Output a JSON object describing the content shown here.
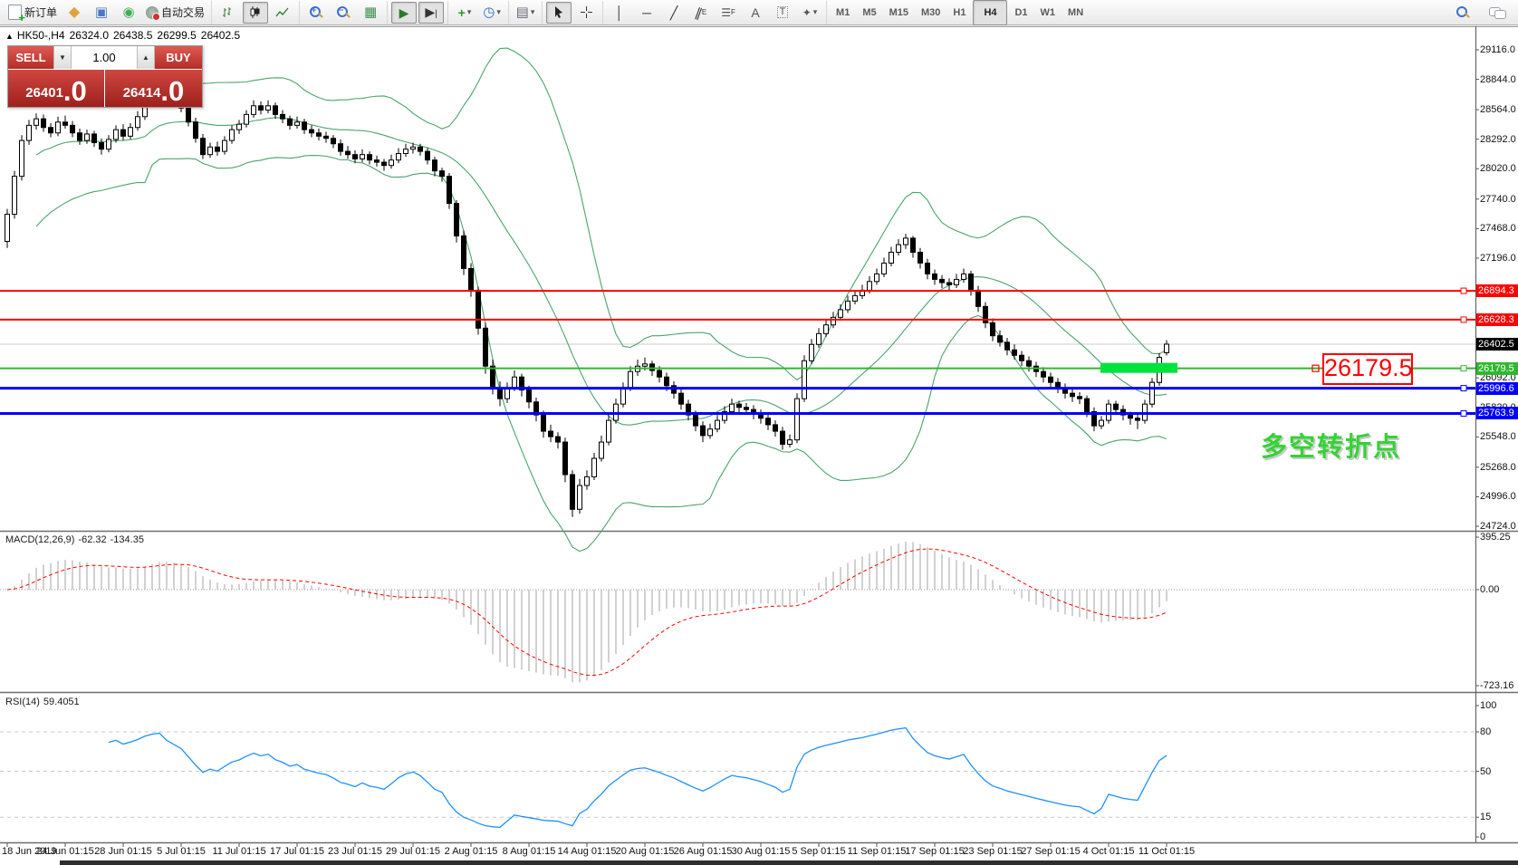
{
  "toolbar": {
    "new_order_label": "新订单",
    "autotrading_label": "自动交易",
    "timeframes": [
      "M1",
      "M5",
      "M15",
      "M30",
      "H1",
      "H4",
      "D1",
      "W1",
      "MN"
    ],
    "active_timeframe": "H4"
  },
  "header": {
    "marker": "▲",
    "symbol_period": "HK50-,H4",
    "open": "26324.0",
    "high": "26438.5",
    "low": "26299.5",
    "close": "26402.5"
  },
  "trade_panel": {
    "sell_label": "SELL",
    "buy_label": "BUY",
    "volume": "1.00",
    "sell_price": "26401",
    "sell_price_dec": ".0",
    "buy_price": "26414",
    "buy_price_dec": ".0"
  },
  "annotations": {
    "price_label": {
      "text": "26179.5",
      "color": "#ff0000"
    },
    "cn_text": {
      "text": "多空转折点",
      "color": "#35d335"
    },
    "highlight_box": {
      "price": 26179.5,
      "color": "#00e33d"
    }
  },
  "indicators": {
    "macd": {
      "name": "MACD(12,26,9)",
      "value_main": "-62.32",
      "value_signal": "-134.35"
    },
    "rsi": {
      "name": "RSI(14)",
      "value": "59.4051"
    }
  },
  "axis": {
    "y_ticks": [
      {
        "text": "29116.0",
        "price": 29116
      },
      {
        "text": "28844.0",
        "price": 28844
      },
      {
        "text": "28564.0",
        "price": 28564
      },
      {
        "text": "28292.0",
        "price": 28292
      },
      {
        "text": "28020.0",
        "price": 28020
      },
      {
        "text": "27740.0",
        "price": 27740
      },
      {
        "text": "27468.0",
        "price": 27468
      },
      {
        "text": "27196.0",
        "price": 27196
      },
      {
        "text": "26092.0",
        "price": 26092
      },
      {
        "text": "25820.0",
        "price": 25820
      },
      {
        "text": "25548.0",
        "price": 25548
      },
      {
        "text": "25268.0",
        "price": 25268
      },
      {
        "text": "24996.0",
        "price": 24996
      },
      {
        "text": "24724.0",
        "price": 24724
      }
    ],
    "x_labels": [
      "18 Jun 2019",
      "24 Jun 01:15",
      "28 Jun 01:15",
      "5 Jul 01:15",
      "11 Jul 01:15",
      "17 Jul 01:15",
      "23 Jul 01:15",
      "29 Jul 01:15",
      "2 Aug 01:15",
      "8 Aug 01:15",
      "14 Aug 01:15",
      "20 Aug 01:15",
      "26 Aug 01:15",
      "30 Aug 01:15",
      "5 Sep 01:15",
      "11 Sep 01:15",
      "17 Sep 01:15",
      "23 Sep 01:15",
      "27 Sep 01:15",
      "4 Oct 01:15",
      "11 Oct 01:15"
    ],
    "macd_scale": [
      {
        "text": "395.25",
        "value": 395.25
      },
      {
        "text": "0.00",
        "value": 0
      },
      {
        "text": "-723.16",
        "value": -723.16
      }
    ],
    "rsi_scale": [
      {
        "text": "100",
        "value": 100
      },
      {
        "text": "80",
        "value": 80
      },
      {
        "text": "50",
        "value": 50
      },
      {
        "text": "15",
        "value": 15
      },
      {
        "text": "0",
        "value": 0
      }
    ]
  },
  "price_badges": [
    {
      "text": "26894.3",
      "price": 26894.3,
      "color": "#ff0000"
    },
    {
      "text": "26628.3",
      "price": 26628.3,
      "color": "#ff0000"
    },
    {
      "text": "26402.5",
      "price": 26402.5,
      "color": "#000000"
    },
    {
      "text": "26179.5",
      "price": 26179.5,
      "color": "#2eb82e"
    },
    {
      "text": "25996.6",
      "price": 25996.6,
      "color": "#0000ff"
    },
    {
      "text": "25763.9",
      "price": 25763.9,
      "color": "#0000ff"
    }
  ],
  "hlines": [
    {
      "price": 26894.3,
      "color": "#ff0000",
      "width": 2
    },
    {
      "price": 26628.3,
      "color": "#ff0000",
      "width": 2
    },
    {
      "price": 26179.5,
      "color": "#2eb82e",
      "width": 2
    },
    {
      "price": 25996.6,
      "color": "#0000ff",
      "width": 3
    },
    {
      "price": 25763.9,
      "color": "#0000ff",
      "width": 3
    }
  ],
  "chart_data": {
    "type": "candlestick",
    "symbol": "HK50-",
    "timeframe": "H4",
    "current_bar": {
      "open": 26324.0,
      "high": 26438.5,
      "low": 26299.5,
      "close": 26402.5
    },
    "price_anchors": {
      "price_top": 29116,
      "price_bottom": 24724
    },
    "overlays": {
      "bollinger": {
        "period": 20,
        "deviation": 2
      }
    },
    "macd_params": {
      "fast": 12,
      "slow": 26,
      "signal": 9
    },
    "rsi_params": {
      "period": 14,
      "levels": [
        80,
        50,
        15
      ]
    },
    "candles": [
      [
        27350,
        27650,
        27290,
        27600
      ],
      [
        27600,
        28000,
        27560,
        27950
      ],
      [
        27950,
        28330,
        27910,
        28280
      ],
      [
        28280,
        28470,
        28240,
        28420
      ],
      [
        28420,
        28530,
        28380,
        28480
      ],
      [
        28480,
        28520,
        28360,
        28400
      ],
      [
        28400,
        28440,
        28310,
        28350
      ],
      [
        28350,
        28500,
        28320,
        28450
      ],
      [
        28450,
        28510,
        28390,
        28420
      ],
      [
        28420,
        28460,
        28310,
        28350
      ],
      [
        28350,
        28390,
        28240,
        28280
      ],
      [
        28280,
        28380,
        28250,
        28340
      ],
      [
        28340,
        28370,
        28220,
        28260
      ],
      [
        28260,
        28300,
        28150,
        28200
      ],
      [
        28200,
        28330,
        28170,
        28290
      ],
      [
        28290,
        28420,
        28260,
        28380
      ],
      [
        28380,
        28430,
        28280,
        28320
      ],
      [
        28320,
        28440,
        28290,
        28400
      ],
      [
        28400,
        28550,
        28370,
        28500
      ],
      [
        28500,
        28690,
        28470,
        28650
      ],
      [
        28650,
        28800,
        28620,
        28750
      ],
      [
        28750,
        28840,
        28710,
        28800
      ],
      [
        28800,
        28830,
        28660,
        28700
      ],
      [
        28700,
        28740,
        28590,
        28640
      ],
      [
        28640,
        28690,
        28540,
        28580
      ],
      [
        28580,
        28620,
        28410,
        28450
      ],
      [
        28450,
        28490,
        28260,
        28300
      ],
      [
        28300,
        28340,
        28110,
        28150
      ],
      [
        28150,
        28260,
        28120,
        28220
      ],
      [
        28220,
        28270,
        28140,
        28180
      ],
      [
        28180,
        28320,
        28150,
        28280
      ],
      [
        28280,
        28420,
        28250,
        28380
      ],
      [
        28380,
        28470,
        28340,
        28430
      ],
      [
        28430,
        28560,
        28400,
        28520
      ],
      [
        28520,
        28650,
        28490,
        28600
      ],
      [
        28600,
        28640,
        28520,
        28560
      ],
      [
        28560,
        28650,
        28530,
        28600
      ],
      [
        28600,
        28630,
        28480,
        28520
      ],
      [
        28520,
        28560,
        28440,
        28480
      ],
      [
        28480,
        28510,
        28380,
        28420
      ],
      [
        28420,
        28500,
        28390,
        28450
      ],
      [
        28450,
        28480,
        28340,
        28380
      ],
      [
        28380,
        28420,
        28310,
        28350
      ],
      [
        28350,
        28390,
        28280,
        28320
      ],
      [
        28320,
        28360,
        28260,
        28300
      ],
      [
        28300,
        28330,
        28210,
        28250
      ],
      [
        28250,
        28290,
        28140,
        28180
      ],
      [
        28180,
        28230,
        28110,
        28150
      ],
      [
        28150,
        28190,
        28070,
        28110
      ],
      [
        28110,
        28200,
        28080,
        28150
      ],
      [
        28150,
        28180,
        28060,
        28100
      ],
      [
        28100,
        28140,
        28040,
        28080
      ],
      [
        28080,
        28110,
        28000,
        28050
      ],
      [
        28050,
        28150,
        28020,
        28100
      ],
      [
        28100,
        28210,
        28070,
        28160
      ],
      [
        28160,
        28250,
        28130,
        28200
      ],
      [
        28200,
        28260,
        28160,
        28220
      ],
      [
        28220,
        28250,
        28140,
        28180
      ],
      [
        28180,
        28210,
        28060,
        28100
      ],
      [
        28100,
        28130,
        27950,
        28000
      ],
      [
        28000,
        28030,
        27900,
        27950
      ],
      [
        27950,
        27980,
        27650,
        27700
      ],
      [
        27700,
        27730,
        27340,
        27400
      ],
      [
        27400,
        27450,
        27040,
        27100
      ],
      [
        27100,
        27150,
        26840,
        26900
      ],
      [
        26900,
        26930,
        26490,
        26550
      ],
      [
        26550,
        26600,
        26130,
        26200
      ],
      [
        26200,
        26260,
        25940,
        26000
      ],
      [
        26000,
        26060,
        25830,
        25900
      ],
      [
        25900,
        26050,
        25860,
        26000
      ],
      [
        26000,
        26160,
        25970,
        26100
      ],
      [
        26100,
        26130,
        25920,
        25980
      ],
      [
        25980,
        26020,
        25810,
        25870
      ],
      [
        25870,
        25910,
        25690,
        25750
      ],
      [
        25750,
        25790,
        25540,
        25600
      ],
      [
        25600,
        25660,
        25500,
        25550
      ],
      [
        25550,
        25590,
        25440,
        25500
      ],
      [
        25500,
        25540,
        25130,
        25200
      ],
      [
        25200,
        25240,
        24810,
        24880
      ],
      [
        24880,
        25160,
        24840,
        25100
      ],
      [
        25100,
        25240,
        25060,
        25180
      ],
      [
        25180,
        25400,
        25150,
        25350
      ],
      [
        25350,
        25560,
        25320,
        25500
      ],
      [
        25500,
        25750,
        25470,
        25700
      ],
      [
        25700,
        25900,
        25670,
        25850
      ],
      [
        25850,
        26050,
        25820,
        26000
      ],
      [
        26000,
        26200,
        25970,
        26150
      ],
      [
        26150,
        26260,
        26110,
        26200
      ],
      [
        26200,
        26280,
        26160,
        26220
      ],
      [
        26220,
        26250,
        26110,
        26160
      ],
      [
        26160,
        26200,
        26050,
        26100
      ],
      [
        26100,
        26140,
        25970,
        26020
      ],
      [
        26020,
        26060,
        25900,
        25950
      ],
      [
        25950,
        25990,
        25800,
        25850
      ],
      [
        25850,
        25890,
        25700,
        25750
      ],
      [
        25750,
        25790,
        25600,
        25650
      ],
      [
        25650,
        25690,
        25500,
        25560
      ],
      [
        25560,
        25670,
        25530,
        25620
      ],
      [
        25620,
        25750,
        25590,
        25700
      ],
      [
        25700,
        25830,
        25670,
        25780
      ],
      [
        25780,
        25900,
        25750,
        25850
      ],
      [
        25850,
        25880,
        25770,
        25820
      ],
      [
        25820,
        25860,
        25750,
        25800
      ],
      [
        25800,
        25840,
        25710,
        25760
      ],
      [
        25760,
        25800,
        25670,
        25720
      ],
      [
        25720,
        25760,
        25610,
        25660
      ],
      [
        25660,
        25700,
        25550,
        25600
      ],
      [
        25600,
        25640,
        25430,
        25480
      ],
      [
        25480,
        25570,
        25450,
        25520
      ],
      [
        25520,
        25950,
        25490,
        25900
      ],
      [
        25900,
        26300,
        25870,
        26250
      ],
      [
        26250,
        26450,
        26220,
        26400
      ],
      [
        26400,
        26550,
        26370,
        26500
      ],
      [
        26500,
        26630,
        26470,
        26580
      ],
      [
        26580,
        26700,
        26550,
        26650
      ],
      [
        26650,
        26770,
        26620,
        26720
      ],
      [
        26720,
        26850,
        26690,
        26800
      ],
      [
        26800,
        26900,
        26770,
        26850
      ],
      [
        26850,
        26950,
        26820,
        26900
      ],
      [
        26900,
        27030,
        26870,
        26980
      ],
      [
        26980,
        27100,
        26950,
        27050
      ],
      [
        27050,
        27200,
        27020,
        27150
      ],
      [
        27150,
        27300,
        27120,
        27250
      ],
      [
        27250,
        27370,
        27220,
        27320
      ],
      [
        27320,
        27420,
        27280,
        27380
      ],
      [
        27380,
        27400,
        27200,
        27250
      ],
      [
        27250,
        27290,
        27100,
        27150
      ],
      [
        27150,
        27190,
        27000,
        27050
      ],
      [
        27050,
        27090,
        26950,
        27000
      ],
      [
        27000,
        27040,
        26920,
        26970
      ],
      [
        26970,
        27010,
        26900,
        26950
      ],
      [
        26950,
        27050,
        26920,
        27000
      ],
      [
        27000,
        27100,
        26970,
        27050
      ],
      [
        27050,
        27080,
        26850,
        26900
      ],
      [
        26900,
        26940,
        26700,
        26750
      ],
      [
        26750,
        26790,
        26550,
        26600
      ],
      [
        26600,
        26640,
        26430,
        26480
      ],
      [
        26480,
        26530,
        26380,
        26420
      ],
      [
        26420,
        26460,
        26300,
        26350
      ],
      [
        26350,
        26400,
        26260,
        26300
      ],
      [
        26300,
        26340,
        26200,
        26250
      ],
      [
        26250,
        26290,
        26150,
        26200
      ],
      [
        26200,
        26240,
        26100,
        26150
      ],
      [
        26150,
        26190,
        26050,
        26100
      ],
      [
        26100,
        26140,
        26000,
        26050
      ],
      [
        26050,
        26090,
        25950,
        26000
      ],
      [
        26000,
        26040,
        25900,
        25950
      ],
      [
        25950,
        25990,
        25870,
        25920
      ],
      [
        25920,
        25960,
        25850,
        25900
      ],
      [
        25900,
        25930,
        25730,
        25780
      ],
      [
        25780,
        25820,
        25600,
        25650
      ],
      [
        25650,
        25740,
        25620,
        25700
      ],
      [
        25700,
        25890,
        25670,
        25850
      ],
      [
        25850,
        25880,
        25750,
        25800
      ],
      [
        25800,
        25840,
        25700,
        25750
      ],
      [
        25750,
        25780,
        25660,
        25720
      ],
      [
        25720,
        25750,
        25620,
        25700
      ],
      [
        25700,
        25890,
        25670,
        25850
      ],
      [
        25850,
        26090,
        25820,
        26050
      ],
      [
        26050,
        26320,
        26020,
        26280
      ],
      [
        26324,
        26438.5,
        26299.5,
        26402.5
      ]
    ]
  }
}
